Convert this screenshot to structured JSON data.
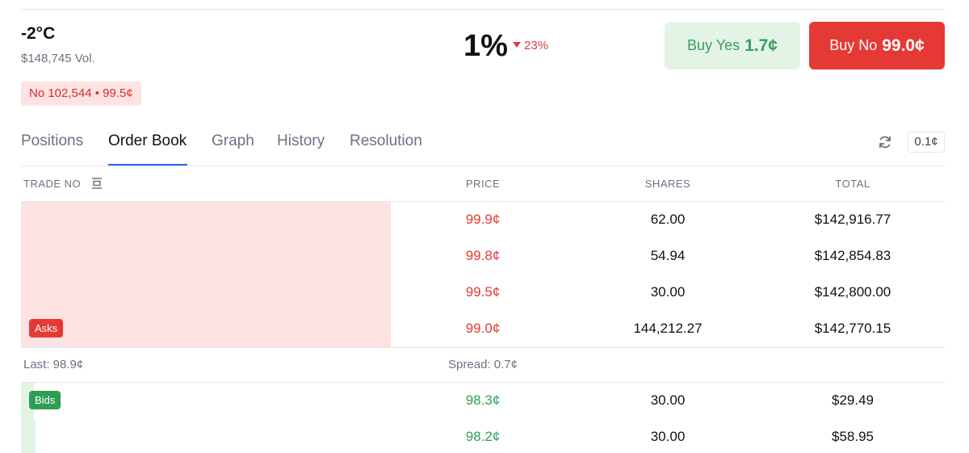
{
  "market": {
    "title": "-2°C",
    "volume": "$148,745 Vol.",
    "chance": "1%",
    "change": "23%",
    "buy_yes": {
      "label": "Buy Yes",
      "price": "1.7¢"
    },
    "buy_no": {
      "label": "Buy No",
      "price": "99.0¢"
    },
    "position": "No 102,544 • 99.5¢"
  },
  "tabs": [
    "Positions",
    "Order Book",
    "Graph",
    "History",
    "Resolution"
  ],
  "tick_size": "0.1¢",
  "order_book": {
    "headers": [
      "TRADE NO",
      "PRICE",
      "SHARES",
      "TOTAL"
    ],
    "asks_label": "Asks",
    "asks": [
      [
        "99.9¢",
        "62.00",
        "$142,916.77"
      ],
      [
        "99.8¢",
        "54.94",
        "$142,854.83"
      ],
      [
        "99.5¢",
        "30.00",
        "$142,800.00"
      ],
      [
        "99.0¢",
        "144,212.27",
        "$142,770.15"
      ]
    ],
    "last": "Last: 98.9¢",
    "spread": "Spread: 0.7¢",
    "bids_label": "Bids",
    "bids": [
      [
        "98.3¢",
        "30.00",
        "$29.49"
      ],
      [
        "98.2¢",
        "30.00",
        "$58.95"
      ]
    ]
  }
}
